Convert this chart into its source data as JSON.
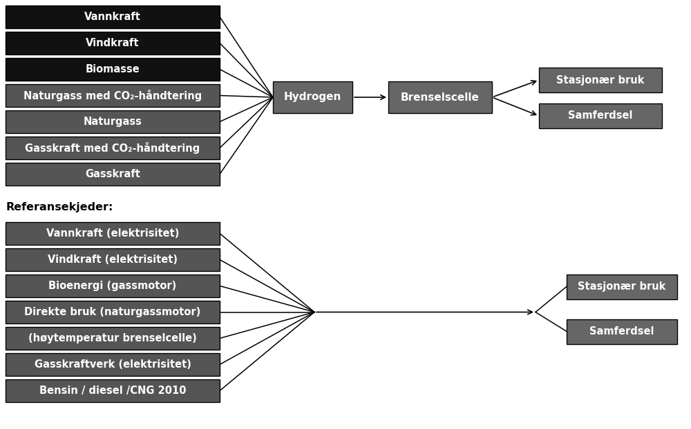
{
  "top_sources": [
    {
      "label": "Vannkraft",
      "color": "#111111"
    },
    {
      "label": "Vindkraft",
      "color": "#111111"
    },
    {
      "label": "Biomasse",
      "color": "#111111"
    },
    {
      "label": "Naturgass med CO₂-håndtering",
      "color": "#555555"
    },
    {
      "label": "Naturgass",
      "color": "#555555"
    },
    {
      "label": "Gasskraft med CO₂-håndtering",
      "color": "#555555"
    },
    {
      "label": "Gasskraft",
      "color": "#555555"
    }
  ],
  "bottom_sources": [
    {
      "label": "Vannkraft (elektrisitet)",
      "color": "#555555"
    },
    {
      "label": "Vindkraft (elektrisitet)",
      "color": "#555555"
    },
    {
      "label": "Bioenergi (gassmotor)",
      "color": "#555555"
    },
    {
      "label": "Direkte bruk (naturgassmotor)",
      "color": "#555555"
    },
    {
      "label": "(høytemperatur brenselcelle)",
      "color": "#555555"
    },
    {
      "label": "Gasskraftverk (elektrisitet)",
      "color": "#555555"
    },
    {
      "label": "Bensin / diesel /CNG 2010",
      "color": "#555555"
    }
  ],
  "ref_label": "Referansekjeder:",
  "bg_color": "#ffffff",
  "src_box_color_dark": "#111111",
  "src_box_color_mid": "#555555",
  "mid_box_color": "#666666",
  "arrow_color": "#000000",
  "text_color_white": "#ffffff",
  "text_color_black": "#000000",
  "font_size": 10.5
}
